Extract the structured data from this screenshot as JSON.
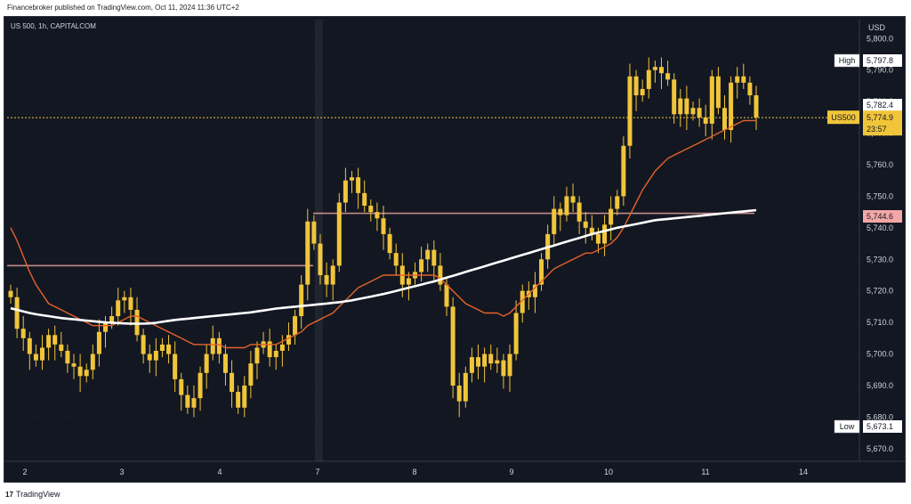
{
  "header": {
    "published_line": "Financebroker published on TradingView.com, Oct 11, 2024 11:36 UTC+2"
  },
  "footer": {
    "logo_glyph": "17",
    "brand": "TradingView"
  },
  "chart_data": {
    "type": "candlestick",
    "title": "US 500, 1h, CAPITALCOM",
    "currency": "USD",
    "symbol": "US500",
    "x_ticks": [
      "2",
      "3",
      "4",
      "7",
      "8",
      "9",
      "10",
      "11",
      "14"
    ],
    "y_ticks": [
      5670,
      5680,
      5690,
      5700,
      5710,
      5720,
      5730,
      5740,
      5750,
      5760,
      5770,
      5780,
      5790,
      5800
    ],
    "ylim": [
      5666,
      5806
    ],
    "last_price": "5,774.9",
    "countdown": "23:57",
    "price_labels": [
      {
        "tag": "High",
        "value": "5,797.8"
      },
      {
        "tag": "",
        "value": "5,782.4"
      },
      {
        "tag": "",
        "value": "5,744.6"
      },
      {
        "tag": "Low",
        "value": "5,673.1"
      }
    ],
    "horizontal_lines": [
      5744.6,
      5728.0
    ],
    "colors": {
      "background": "#131722",
      "candle": "#f0c53a",
      "ma_fast": "#e5622a",
      "ma_slow": "#ffffff",
      "level": "#c48a8a",
      "grid": "#2a2e39",
      "axis_text": "#d1d4dc",
      "last_price_bg": "#f0c53a",
      "level_label_bg": "#f4a7a7"
    },
    "closes": [
      5718,
      5708,
      5705,
      5700,
      5698,
      5702,
      5706,
      5703,
      5701,
      5697,
      5696,
      5693,
      5695,
      5700,
      5707,
      5710,
      5712,
      5717,
      5718,
      5714,
      5706,
      5700,
      5698,
      5701,
      5703,
      5700,
      5692,
      5687,
      5683,
      5686,
      5694,
      5700,
      5705,
      5700,
      5694,
      5688,
      5683,
      5690,
      5697,
      5702,
      5704,
      5699,
      5701,
      5703,
      5706,
      5712,
      5722,
      5742,
      5735,
      5725,
      5722,
      5728,
      5748,
      5755,
      5756,
      5751,
      5747,
      5745,
      5743,
      5738,
      5732,
      5728,
      5722,
      5724,
      5726,
      5730,
      5733,
      5728,
      5722,
      5715,
      5690,
      5685,
      5694,
      5699,
      5696,
      5700,
      5697,
      5698,
      5693,
      5700,
      5713,
      5720,
      5718,
      5722,
      5730,
      5738,
      5746,
      5744,
      5750,
      5748,
      5742,
      5740,
      5738,
      5735,
      5741,
      5746,
      5750,
      5766,
      5788,
      5782,
      5784,
      5790,
      5791,
      5789,
      5787,
      5776,
      5781,
      5776,
      5778,
      5775,
      5773,
      5788,
      5778,
      5771,
      5786,
      5788,
      5786,
      5782,
      5775
    ],
    "ma_fast": [
      5740,
      5736,
      5731,
      5726,
      5722,
      5719,
      5716,
      5715,
      5714,
      5713,
      5712,
      5711,
      5710,
      5709,
      5709,
      5709,
      5709,
      5710,
      5711,
      5712,
      5712,
      5711,
      5710,
      5709,
      5708,
      5707,
      5706,
      5705,
      5704,
      5703,
      5703,
      5703,
      5703,
      5703,
      5702,
      5702,
      5702,
      5702,
      5703,
      5703,
      5703,
      5703,
      5703,
      5704,
      5705,
      5706,
      5707,
      5709,
      5710,
      5711,
      5712,
      5713,
      5715,
      5717,
      5719,
      5721,
      5722,
      5723,
      5724,
      5725,
      5725,
      5725,
      5725,
      5725,
      5725,
      5725,
      5725,
      5725,
      5724,
      5722,
      5720,
      5718,
      5716,
      5715,
      5714,
      5713,
      5713,
      5713,
      5712,
      5713,
      5715,
      5717,
      5719,
      5721,
      5723,
      5725,
      5727,
      5728,
      5729,
      5730,
      5731,
      5732,
      5732,
      5733,
      5734,
      5735,
      5737,
      5740,
      5744,
      5748,
      5752,
      5755,
      5758,
      5760,
      5762,
      5763,
      5764,
      5765,
      5766,
      5767,
      5768,
      5769,
      5770,
      5771,
      5772,
      5773,
      5774,
      5774,
      5774
    ],
    "ma_slow": [
      5714.5,
      5714,
      5713.5,
      5713,
      5712.6,
      5712.3,
      5712,
      5711.7,
      5711.4,
      5711.2,
      5711,
      5710.8,
      5710.6,
      5710.4,
      5710.2,
      5710,
      5709.9,
      5709.8,
      5709.7,
      5709.6,
      5709.6,
      5709.6,
      5709.7,
      5709.9,
      5710.2,
      5710.5,
      5710.8,
      5711,
      5711.2,
      5711.4,
      5711.6,
      5711.8,
      5712,
      5712.2,
      5712.4,
      5712.6,
      5712.8,
      5713,
      5713.2,
      5713.5,
      5713.8,
      5714.1,
      5714.4,
      5714.6,
      5714.8,
      5715,
      5715.2,
      5715.4,
      5715.6,
      5715.8,
      5716,
      5716.2,
      5716.4,
      5716.7,
      5717,
      5717.4,
      5717.8,
      5718.2,
      5718.6,
      5719,
      5719.5,
      5720,
      5720.5,
      5721,
      5721.5,
      5722,
      5722.5,
      5723,
      5723.6,
      5724.2,
      5724.8,
      5725.4,
      5726,
      5726.6,
      5727.2,
      5727.8,
      5728.4,
      5729,
      5729.6,
      5730.2,
      5730.8,
      5731.4,
      5732,
      5732.6,
      5733.2,
      5733.8,
      5734.4,
      5735,
      5735.6,
      5736.2,
      5736.8,
      5737.4,
      5738,
      5738.5,
      5739,
      5739.5,
      5740,
      5740.4,
      5740.8,
      5741.2,
      5741.6,
      5742,
      5742.4,
      5742.6,
      5742.8,
      5743,
      5743.2,
      5743.4,
      5743.6,
      5743.8,
      5744,
      5744.2,
      5744.4,
      5744.6,
      5744.8,
      5745,
      5745.2,
      5745.4,
      5745.6
    ]
  }
}
